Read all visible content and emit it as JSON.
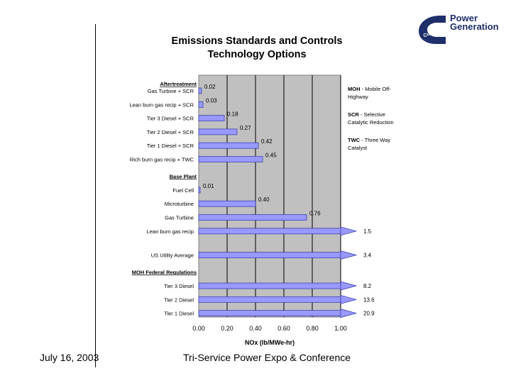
{
  "branding": {
    "logo_word": "Cummins",
    "line1": "Power",
    "line2": "Generation",
    "brand_color": "#1f2f6b"
  },
  "footer": {
    "date": "July 16, 2003",
    "event": "Tri-Service Power Expo & Conference"
  },
  "chart_data": {
    "type": "bar",
    "orientation": "horizontal",
    "title": "Emissions Standards and Controls",
    "subtitle": "Technology Options",
    "xlabel": "NOx (lb/MWe-hr)",
    "xlim": [
      0,
      1
    ],
    "xticks": [
      "0.00",
      "0.20",
      "0.40",
      "0.60",
      "0.80",
      "1.00"
    ],
    "groups": [
      {
        "label": "Aftertreatment",
        "items": [
          {
            "category": "Gas Turbine + SCR",
            "value": 0.02,
            "label": "0.02"
          },
          {
            "category": "Lean burn gas recip + SCR",
            "value": 0.03,
            "label": "0.03"
          },
          {
            "category": "Tier 3 Diesel + SCR",
            "value": 0.18,
            "label": "0.18"
          },
          {
            "category": "Tier 2 Diesel + SCR",
            "value": 0.27,
            "label": "0.27"
          },
          {
            "category": "Tier 1 Diesel + SCR",
            "value": 0.42,
            "label": "0.42"
          },
          {
            "category": "Rich burn gas recip + TWC",
            "value": 0.45,
            "label": "0.45"
          }
        ]
      },
      {
        "label": "Base Plant",
        "items": [
          {
            "category": "Fuel Cell",
            "value": 0.01,
            "label": "0.01"
          },
          {
            "category": "Microturbine",
            "value": 0.4,
            "label": "0.40"
          },
          {
            "category": "Gas Turbine",
            "value": 0.76,
            "label": "0.76"
          },
          {
            "category": "Lean burn gas recip",
            "value": 1.5,
            "label": "1.5",
            "overflow": true
          }
        ]
      },
      {
        "label": "",
        "items": [
          {
            "category": "US Utility Average",
            "value": 3.4,
            "label": "3.4",
            "overflow": true
          }
        ]
      },
      {
        "label": "MOH Federal Regulations",
        "items": [
          {
            "category": "Tier 3 Diesel",
            "value": 8.2,
            "label": "8.2",
            "overflow": true
          },
          {
            "category": "Tier 2 Diesel",
            "value": 13.6,
            "label": "13.6",
            "overflow": true
          },
          {
            "category": "Tier 1 Diesel",
            "value": 20.9,
            "label": "20.9",
            "overflow": true
          }
        ]
      }
    ],
    "legend": [
      {
        "abbr": "MOH",
        "line1": "- Mobile Off-",
        "line2": "Highway"
      },
      {
        "abbr": "SCR",
        "line1": "- Selective",
        "line2": "Catalytic Reduction"
      },
      {
        "abbr": "TWC",
        "line1": "- Three Way",
        "line2": "Catalyst"
      }
    ],
    "bar_color": "#9999ff",
    "plot_bg": "#c0c0c0",
    "grid": true
  }
}
